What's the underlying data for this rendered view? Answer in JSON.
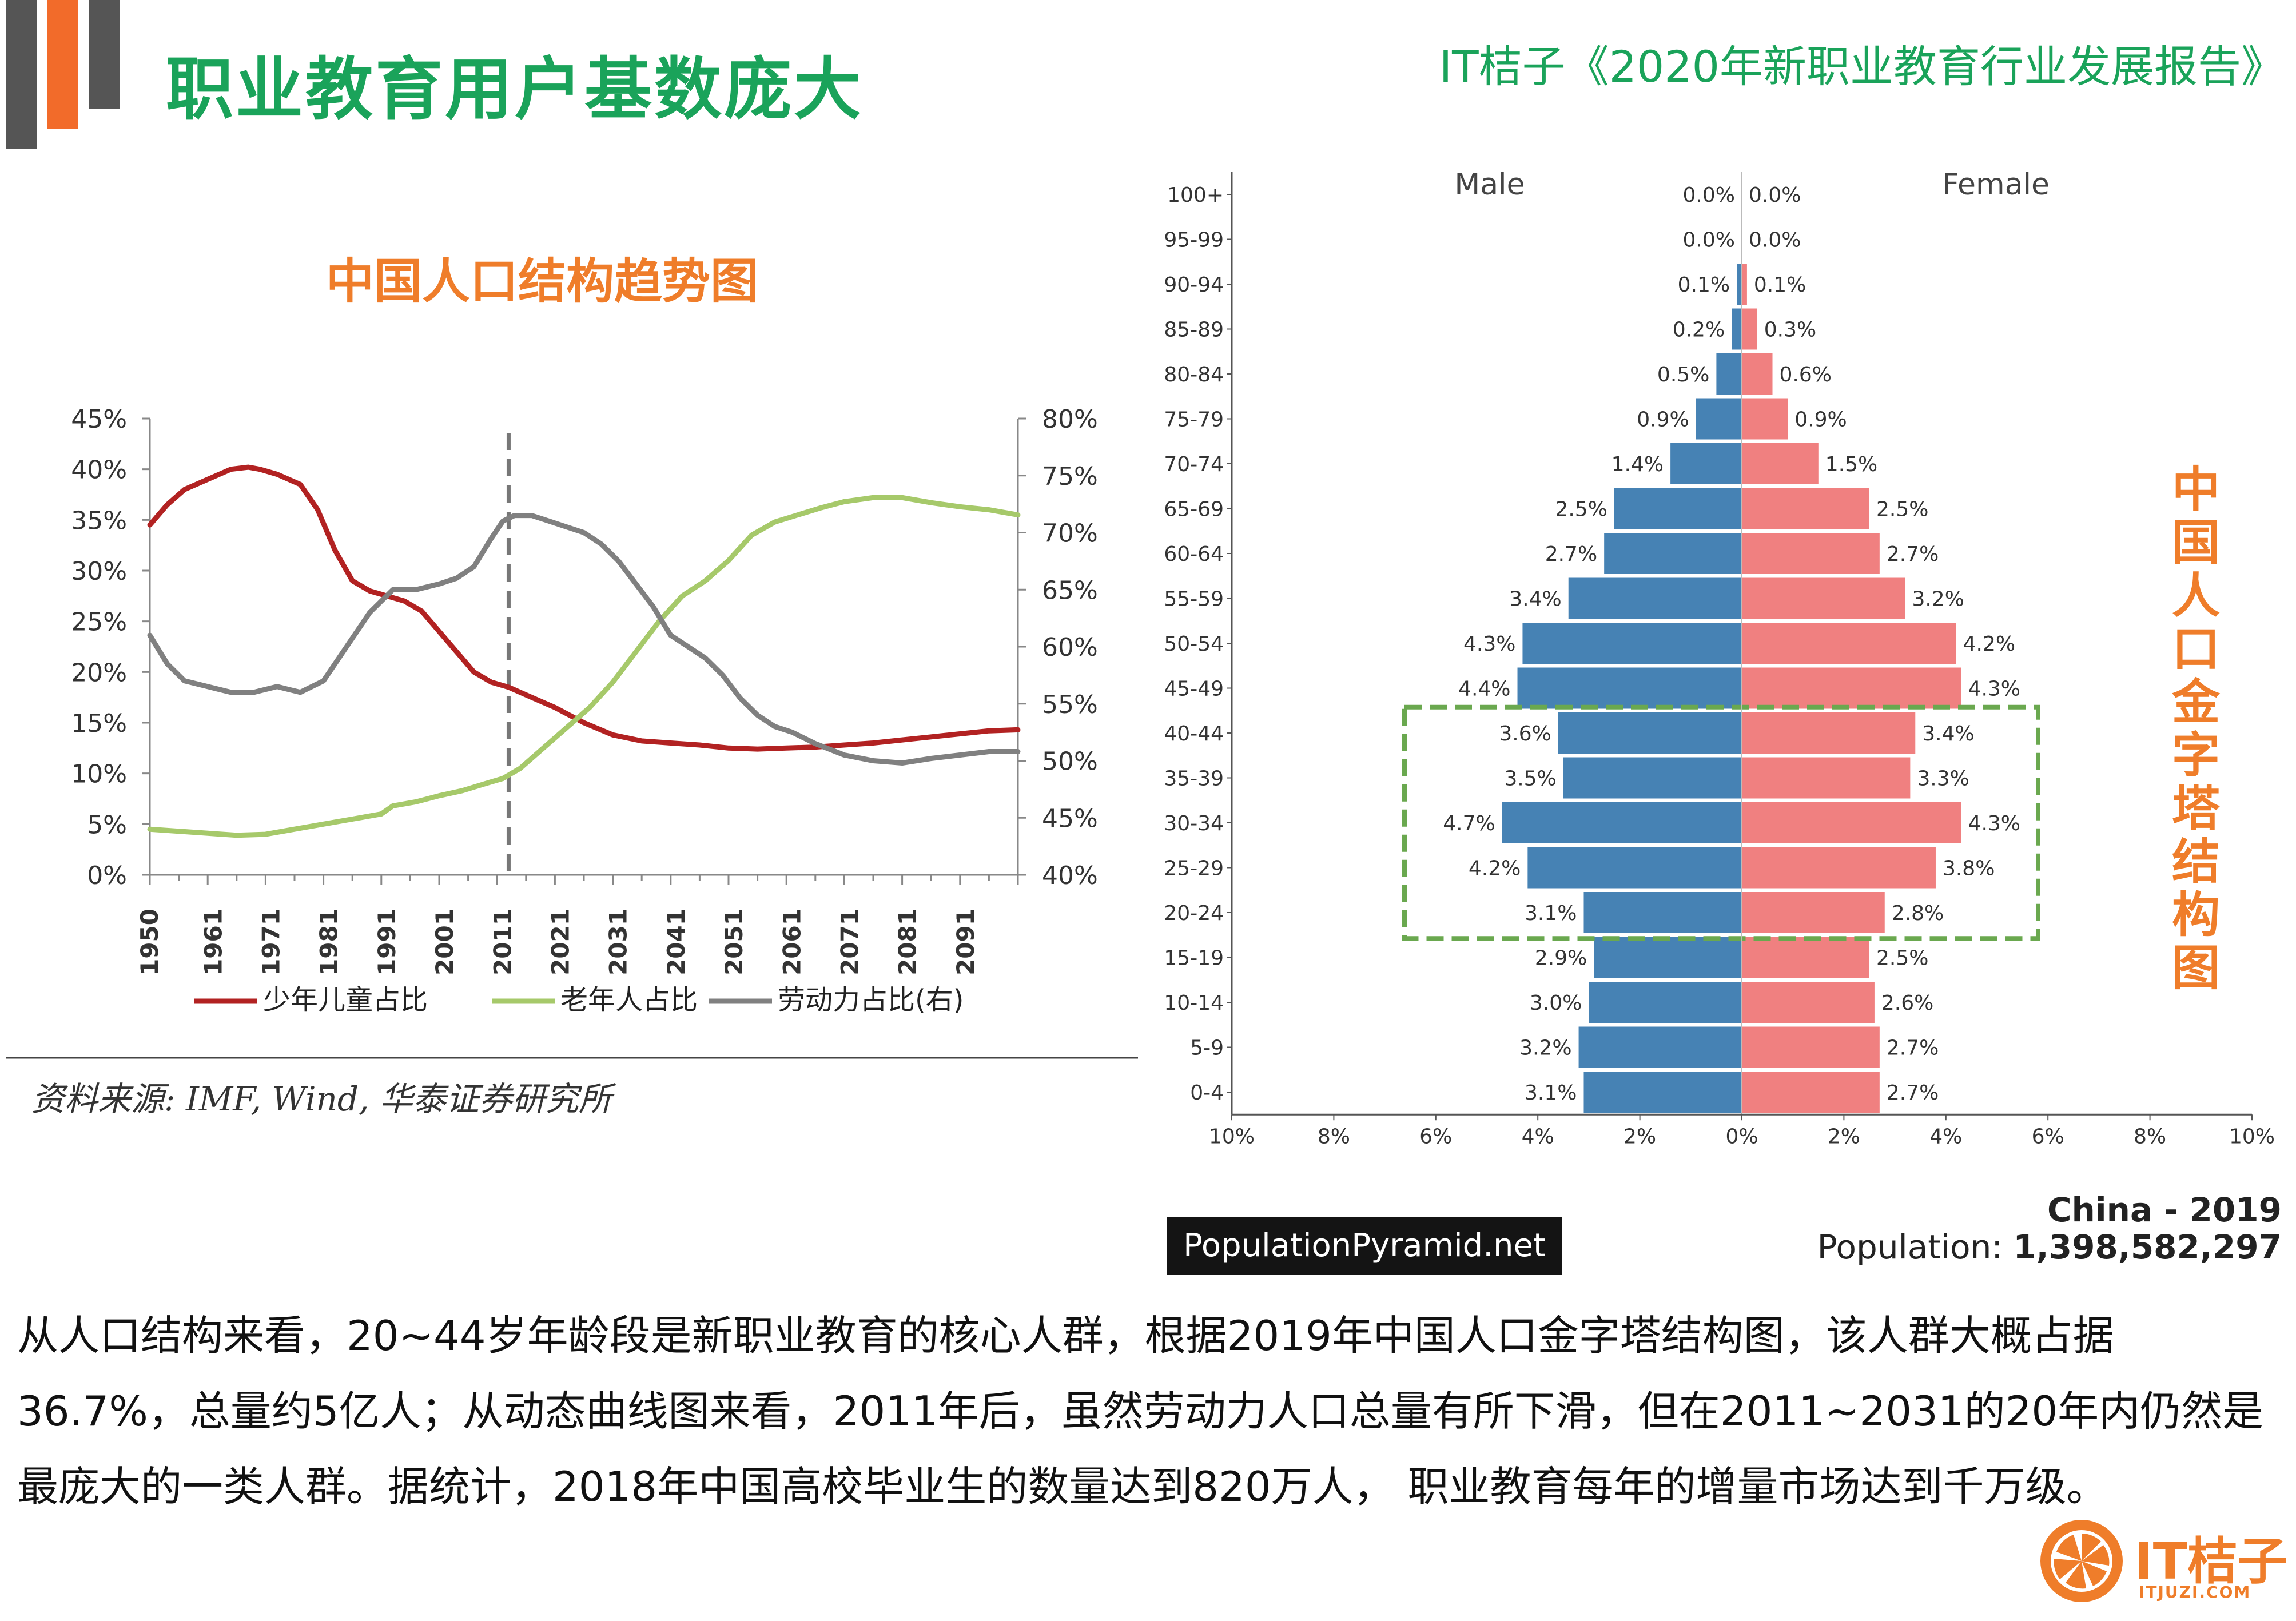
{
  "header": {
    "title": "职业教育用户基数庞大",
    "report": "IT桔子《2020年新职业教育行业发展报告》"
  },
  "line_chart_title": "中国人口结构趋势图",
  "pyramid_title_chars": [
    "中",
    "国",
    "人",
    "口",
    "金",
    "字",
    "塔",
    "结",
    "构",
    "图"
  ],
  "source_note": "资料来源: IMF, Wind, 华泰证券研究所",
  "pyramid_meta": {
    "site": "PopulationPyramid.net",
    "country_year": "China - 2019",
    "population_label": "Population:",
    "population_value": "1,398,582,297"
  },
  "body_text": "从人口结构来看，20~44岁年龄段是新职业教育的核心人群，根据2019年中国人口金字塔结构图，该人群大概占据36.7%，总量约5亿人；从动态曲线图来看，2011年后，虽然劳动力人口总量有所下滑，但在2011~2031的20年内仍然是最庞大的一类人群。据统计，2018年中国高校毕业生的数量达到820万人， 职业教育每年的增量市场达到千万级。",
  "logo": {
    "text": "IT桔子",
    "sub": "ITJUZI.COM"
  },
  "colors": {
    "title_green": "#1aa35a",
    "accent_orange": "#ef7d2a",
    "children_red": "#b22222",
    "elderly_green": "#a6c96a",
    "labor_gray": "#808080",
    "male_blue": "#4682b4",
    "female_pink": "#f08080",
    "highlight_green": "#6aa84f"
  },
  "chart_data": [
    {
      "type": "line",
      "title": "中国人口结构趋势图",
      "x_tick_labels": [
        "1950",
        "1961",
        "1971",
        "1981",
        "1991",
        "2001",
        "2011",
        "2021",
        "2031",
        "2041",
        "2051",
        "2061",
        "2071",
        "2081",
        "2091"
      ],
      "xlim": [
        1950,
        2100
      ],
      "y_left": {
        "lim": [
          0,
          45
        ],
        "tick_labels": [
          "0%",
          "5%",
          "10%",
          "15%",
          "20%",
          "25%",
          "30%",
          "35%",
          "40%",
          "45%"
        ]
      },
      "y_right": {
        "lim": [
          40,
          80
        ],
        "tick_labels": [
          "40%",
          "45%",
          "50%",
          "55%",
          "60%",
          "65%",
          "70%",
          "75%",
          "80%"
        ]
      },
      "reference_line_x": 2012,
      "legend": [
        "少年儿童占比",
        "老年人占比",
        "劳动力占比(右)"
      ],
      "series": [
        {
          "name": "少年儿童占比",
          "axis": "left",
          "color": "#b22222",
          "x": [
            1950,
            1953,
            1956,
            1960,
            1964,
            1967,
            1969,
            1972,
            1976,
            1979,
            1982,
            1985,
            1988,
            1991,
            1994,
            1997,
            2000,
            2003,
            2006,
            2009,
            2012,
            2016,
            2020,
            2025,
            2030,
            2035,
            2040,
            2045,
            2050,
            2055,
            2060,
            2065,
            2070,
            2075,
            2080,
            2085,
            2090,
            2095,
            2100
          ],
          "y": [
            34.5,
            36.5,
            38.0,
            39.0,
            40.0,
            40.2,
            40.0,
            39.5,
            38.5,
            36.0,
            32.0,
            29.0,
            28.0,
            27.5,
            27.0,
            26.0,
            24.0,
            22.0,
            20.0,
            19.0,
            18.5,
            17.5,
            16.5,
            15.0,
            13.8,
            13.2,
            13.0,
            12.8,
            12.5,
            12.4,
            12.5,
            12.6,
            12.8,
            13.0,
            13.3,
            13.6,
            13.9,
            14.2,
            14.3
          ]
        },
        {
          "name": "老年人占比",
          "axis": "left",
          "color": "#a6c96a",
          "x": [
            1950,
            1955,
            1960,
            1965,
            1970,
            1975,
            1980,
            1985,
            1990,
            1992,
            1996,
            2000,
            2004,
            2008,
            2011,
            2014,
            2018,
            2022,
            2026,
            2030,
            2034,
            2038,
            2042,
            2046,
            2050,
            2054,
            2058,
            2062,
            2066,
            2070,
            2075,
            2080,
            2085,
            2090,
            2095,
            2100
          ],
          "y": [
            4.5,
            4.3,
            4.1,
            3.9,
            4.0,
            4.5,
            5.0,
            5.5,
            6.0,
            6.8,
            7.2,
            7.8,
            8.3,
            9.0,
            9.5,
            10.5,
            12.5,
            14.5,
            16.5,
            19.0,
            22.0,
            25.0,
            27.5,
            29.0,
            31.0,
            33.5,
            34.8,
            35.5,
            36.2,
            36.8,
            37.2,
            37.2,
            36.7,
            36.3,
            36.0,
            35.5
          ]
        },
        {
          "name": "劳动力占比(右)",
          "axis": "right",
          "color": "#808080",
          "x": [
            1950,
            1953,
            1956,
            1960,
            1964,
            1968,
            1972,
            1976,
            1980,
            1984,
            1988,
            1992,
            1996,
            2000,
            2003,
            2006,
            2009,
            2011,
            2013,
            2016,
            2019,
            2022,
            2025,
            2028,
            2031,
            2034,
            2037,
            2040,
            2043,
            2046,
            2049,
            2052,
            2055,
            2058,
            2061,
            2065,
            2070,
            2075,
            2080,
            2085,
            2090,
            2095,
            2100
          ],
          "y": [
            61.0,
            58.5,
            57.0,
            56.5,
            56.0,
            56.0,
            56.5,
            56.0,
            57.0,
            60.0,
            63.0,
            65.0,
            65.0,
            65.5,
            66.0,
            67.0,
            69.5,
            71.0,
            71.5,
            71.5,
            71.0,
            70.5,
            70.0,
            69.0,
            67.5,
            65.5,
            63.5,
            61.0,
            60.0,
            59.0,
            57.5,
            55.5,
            54.0,
            53.0,
            52.5,
            51.5,
            50.5,
            50.0,
            49.8,
            50.2,
            50.5,
            50.8,
            50.8
          ]
        }
      ]
    },
    {
      "type": "bar",
      "orientation": "horizontal",
      "title": "China - 2019",
      "legend": [
        "Male",
        "Female"
      ],
      "categories": [
        "100+",
        "95-99",
        "90-94",
        "85-89",
        "80-84",
        "75-79",
        "70-74",
        "65-69",
        "60-64",
        "55-59",
        "50-54",
        "45-49",
        "40-44",
        "35-39",
        "30-34",
        "25-29",
        "20-24",
        "15-19",
        "10-14",
        "5-9",
        "0-4"
      ],
      "series": [
        {
          "name": "Male",
          "color": "#4682b4",
          "values": [
            0.0,
            0.0,
            0.1,
            0.2,
            0.5,
            0.9,
            1.4,
            2.5,
            2.7,
            3.4,
            4.3,
            4.4,
            3.6,
            3.5,
            4.7,
            4.2,
            3.1,
            2.9,
            3.0,
            3.2,
            3.1
          ],
          "labels": [
            "0.0%",
            "0.0%",
            "0.1%",
            "0.2%",
            "0.5%",
            "0.9%",
            "1.4%",
            "2.5%",
            "2.7%",
            "3.4%",
            "4.3%",
            "4.4%",
            "3.6%",
            "3.5%",
            "4.7%",
            "4.2%",
            "3.1%",
            "2.9%",
            "3.0%",
            "3.2%",
            "3.1%"
          ]
        },
        {
          "name": "Female",
          "color": "#f08080",
          "values": [
            0.0,
            0.0,
            0.1,
            0.3,
            0.6,
            0.9,
            1.5,
            2.5,
            2.7,
            3.2,
            4.2,
            4.3,
            3.4,
            3.3,
            4.3,
            3.8,
            2.8,
            2.5,
            2.6,
            2.7,
            2.7
          ],
          "labels": [
            "0.0%",
            "0.0%",
            "0.1%",
            "0.3%",
            "0.6%",
            "0.9%",
            "1.5%",
            "2.5%",
            "2.7%",
            "3.2%",
            "4.2%",
            "4.3%",
            "3.4%",
            "3.3%",
            "4.3%",
            "3.8%",
            "2.8%",
            "2.5%",
            "2.6%",
            "2.7%",
            "2.7%"
          ]
        }
      ],
      "x_tick_labels": [
        "10%",
        "8%",
        "6%",
        "4%",
        "2%",
        "0%",
        "2%",
        "4%",
        "6%",
        "8%",
        "10%"
      ],
      "xlim": [
        -10,
        10
      ],
      "highlight_categories": [
        "40-44",
        "35-39",
        "30-34",
        "25-29",
        "20-24"
      ]
    }
  ]
}
